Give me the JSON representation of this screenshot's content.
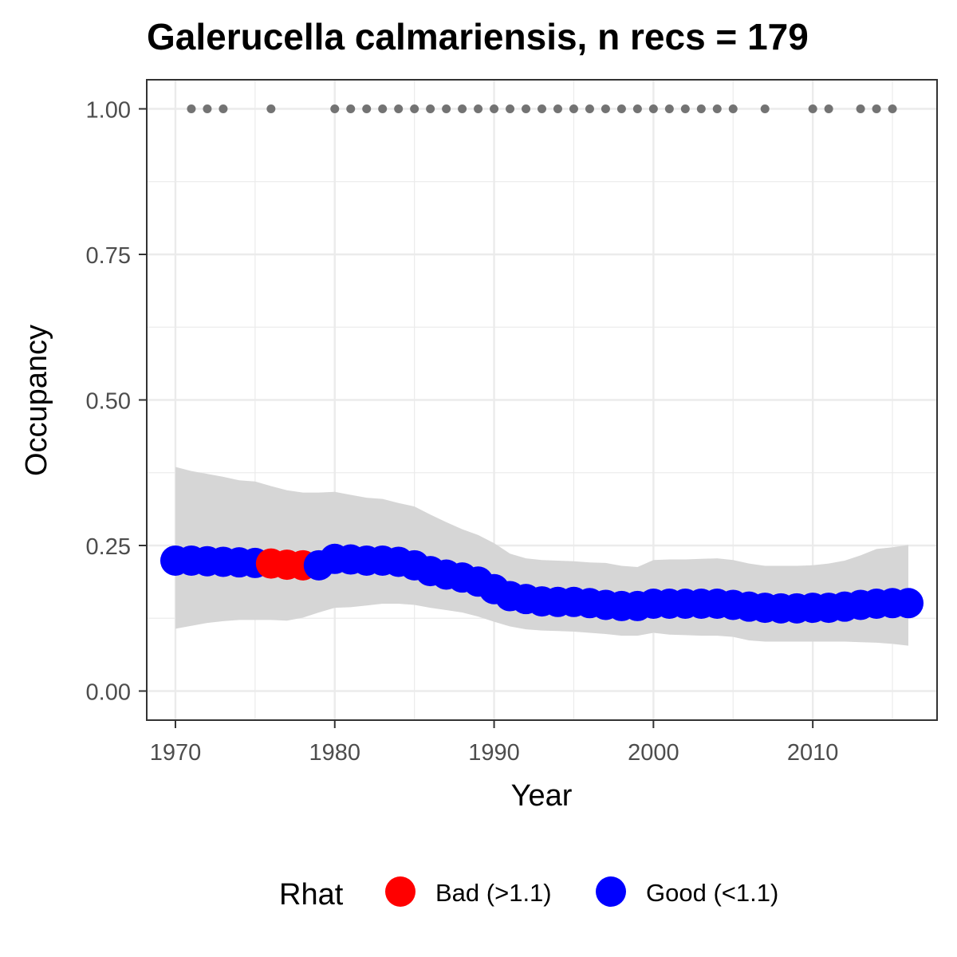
{
  "chart_data": {
    "type": "line",
    "title": "Galerucella calmariensis, n recs = 179",
    "xlabel": "Year",
    "ylabel": "Occupancy",
    "xlim": [
      1968.2,
      2017.8
    ],
    "ylim": [
      -0.05,
      1.05
    ],
    "x_ticks": [
      1970,
      1980,
      1990,
      2000,
      2010
    ],
    "x_tick_labels": [
      "1970",
      "1980",
      "1990",
      "2000",
      "2010"
    ],
    "y_ticks": [
      0,
      0.25,
      0.5,
      0.75,
      1
    ],
    "y_tick_labels": [
      "0.00",
      "0.25",
      "0.50",
      "0.75",
      "1.00"
    ],
    "grid": true,
    "years": [
      1970,
      1971,
      1972,
      1973,
      1974,
      1975,
      1976,
      1977,
      1978,
      1979,
      1980,
      1981,
      1982,
      1983,
      1984,
      1985,
      1986,
      1987,
      1988,
      1989,
      1990,
      1991,
      1992,
      1993,
      1994,
      1995,
      1996,
      1997,
      1998,
      1999,
      2000,
      2001,
      2002,
      2003,
      2004,
      2005,
      2006,
      2007,
      2008,
      2009,
      2010,
      2011,
      2012,
      2013,
      2014,
      2015,
      2016
    ],
    "occupancy": [
      0.224,
      0.224,
      0.223,
      0.222,
      0.221,
      0.22,
      0.219,
      0.217,
      0.216,
      0.216,
      0.227,
      0.226,
      0.224,
      0.224,
      0.222,
      0.216,
      0.206,
      0.2,
      0.195,
      0.188,
      0.175,
      0.163,
      0.158,
      0.154,
      0.153,
      0.153,
      0.151,
      0.148,
      0.146,
      0.146,
      0.15,
      0.15,
      0.15,
      0.15,
      0.15,
      0.148,
      0.145,
      0.143,
      0.142,
      0.142,
      0.143,
      0.143,
      0.145,
      0.148,
      0.15,
      0.151,
      0.151
    ],
    "lower": [
      0.107,
      0.112,
      0.117,
      0.12,
      0.122,
      0.122,
      0.122,
      0.121,
      0.126,
      0.135,
      0.143,
      0.144,
      0.147,
      0.15,
      0.15,
      0.148,
      0.143,
      0.139,
      0.135,
      0.128,
      0.119,
      0.111,
      0.106,
      0.104,
      0.103,
      0.102,
      0.1,
      0.098,
      0.095,
      0.095,
      0.1,
      0.097,
      0.096,
      0.095,
      0.095,
      0.093,
      0.087,
      0.085,
      0.085,
      0.085,
      0.085,
      0.085,
      0.085,
      0.084,
      0.083,
      0.081,
      0.078
    ],
    "upper": [
      0.385,
      0.378,
      0.373,
      0.368,
      0.362,
      0.36,
      0.352,
      0.345,
      0.341,
      0.341,
      0.342,
      0.337,
      0.332,
      0.33,
      0.323,
      0.317,
      0.303,
      0.29,
      0.278,
      0.268,
      0.254,
      0.236,
      0.228,
      0.225,
      0.224,
      0.223,
      0.221,
      0.22,
      0.215,
      0.213,
      0.225,
      0.226,
      0.226,
      0.227,
      0.228,
      0.225,
      0.219,
      0.215,
      0.215,
      0.215,
      0.216,
      0.219,
      0.224,
      0.233,
      0.244,
      0.247,
      0.251
    ],
    "rhat_status": [
      "Good",
      "Good",
      "Good",
      "Good",
      "Good",
      "Good",
      "Bad",
      "Bad",
      "Bad",
      "Good",
      "Good",
      "Good",
      "Good",
      "Good",
      "Good",
      "Good",
      "Good",
      "Good",
      "Good",
      "Good",
      "Good",
      "Good",
      "Good",
      "Good",
      "Good",
      "Good",
      "Good",
      "Good",
      "Good",
      "Good",
      "Good",
      "Good",
      "Good",
      "Good",
      "Good",
      "Good",
      "Good",
      "Good",
      "Good",
      "Good",
      "Good",
      "Good",
      "Good",
      "Good",
      "Good",
      "Good",
      "Good"
    ],
    "record_years": [
      1971,
      1972,
      1973,
      1976,
      1980,
      1981,
      1982,
      1983,
      1984,
      1985,
      1986,
      1987,
      1988,
      1989,
      1990,
      1991,
      1992,
      1993,
      1994,
      1995,
      1996,
      1997,
      1998,
      1999,
      2000,
      2001,
      2002,
      2003,
      2004,
      2005,
      2007,
      2010,
      2011,
      2013,
      2014,
      2015
    ],
    "legend": {
      "title": "Rhat",
      "position": "bottom",
      "entries": [
        {
          "key": "Bad",
          "label": "Bad (>1.1)",
          "color": "#ff0000"
        },
        {
          "key": "Good",
          "label": "Good (<1.1)",
          "color": "#0000ff"
        }
      ]
    },
    "colors": {
      "bad": "#ff0000",
      "good": "#0000ff",
      "ribbon": "#d6d6d6",
      "record_points": "#737373"
    }
  }
}
